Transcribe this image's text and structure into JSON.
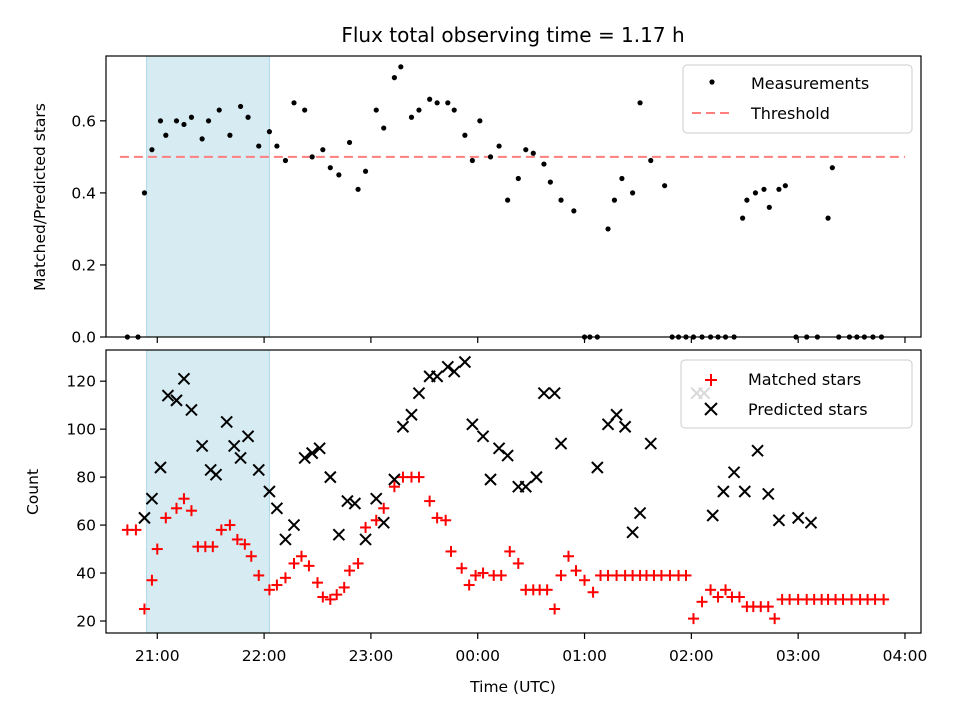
{
  "chart_data": [
    {
      "type": "scatter",
      "title": "Flux total observing time = 1.17 h",
      "xlabel": "",
      "ylabel": "Matched/Predicted stars",
      "x_unit": "hours since 20:00 UTC",
      "xlim": [
        0.52,
        8.15
      ],
      "ylim": [
        0,
        0.78
      ],
      "yticks": [
        0.0,
        0.2,
        0.4,
        0.6
      ],
      "ytick_labels": [
        "0.0",
        "0.2",
        "0.4",
        "0.6"
      ],
      "shaded_span": [
        0.9,
        2.05
      ],
      "shaded_color": "#add8e6",
      "legend_position": "top-right",
      "series": [
        {
          "name": "Measurements",
          "marker": "dot",
          "color": "#000000",
          "x": [
            0.72,
            0.82,
            0.88,
            0.95,
            1.03,
            1.08,
            1.18,
            1.25,
            1.32,
            1.42,
            1.48,
            1.58,
            1.68,
            1.78,
            1.85,
            1.95,
            2.05,
            2.12,
            2.2,
            2.28,
            2.38,
            2.45,
            2.55,
            2.62,
            2.7,
            2.8,
            2.88,
            2.95,
            3.05,
            3.12,
            3.22,
            3.28,
            3.38,
            3.45,
            3.55,
            3.62,
            3.72,
            3.78,
            3.88,
            3.95,
            4.02,
            4.12,
            4.2,
            4.28,
            4.38,
            4.45,
            4.52,
            4.62,
            4.68,
            4.78,
            4.9,
            5.0,
            5.05,
            5.12,
            5.22,
            5.28,
            5.35,
            5.45,
            5.52,
            5.62,
            5.75,
            5.82,
            5.88,
            5.95,
            6.02,
            6.1,
            6.18,
            6.25,
            6.32,
            6.4,
            6.48,
            6.52,
            6.6,
            6.68,
            6.73,
            6.82,
            6.88,
            6.98,
            7.08,
            7.18,
            7.28,
            7.32,
            7.38,
            7.48,
            7.55,
            7.62,
            7.7,
            7.78
          ],
          "y": [
            0.0,
            0.0,
            0.4,
            0.52,
            0.6,
            0.56,
            0.6,
            0.59,
            0.61,
            0.55,
            0.6,
            0.63,
            0.56,
            0.64,
            0.61,
            0.53,
            0.57,
            0.53,
            0.49,
            0.65,
            0.63,
            0.5,
            0.52,
            0.47,
            0.45,
            0.54,
            0.41,
            0.46,
            0.63,
            0.58,
            0.72,
            0.75,
            0.61,
            0.63,
            0.66,
            0.65,
            0.65,
            0.63,
            0.56,
            0.49,
            0.6,
            0.5,
            0.53,
            0.38,
            0.44,
            0.52,
            0.51,
            0.48,
            0.43,
            0.38,
            0.35,
            0.0,
            0.0,
            0.0,
            0.3,
            0.38,
            0.44,
            0.4,
            0.65,
            0.49,
            0.42,
            0.0,
            0.0,
            0.0,
            0.0,
            0.0,
            0.0,
            0.0,
            0.0,
            0.0,
            0.33,
            0.38,
            0.4,
            0.41,
            0.36,
            0.41,
            0.42,
            0.0,
            0.0,
            0.0,
            0.33,
            0.47,
            0.0,
            0.0,
            0.0,
            0.0,
            0.0,
            0.0
          ]
        },
        {
          "name": "Threshold",
          "marker": "dashed-line",
          "color": "#ff7f7f",
          "x": [
            0.65,
            8.0
          ],
          "y": [
            0.5,
            0.5
          ]
        }
      ]
    },
    {
      "type": "scatter",
      "title": "",
      "xlabel": "Time (UTC)",
      "ylabel": "Count",
      "x_unit": "hours since 20:00 UTC",
      "xlim": [
        0.52,
        8.15
      ],
      "ylim": [
        15,
        133
      ],
      "yticks": [
        20,
        40,
        60,
        80,
        100,
        120
      ],
      "xticks": [
        1,
        2,
        3,
        4,
        5,
        6,
        7,
        8
      ],
      "xtick_labels": [
        "21:00",
        "22:00",
        "23:00",
        "00:00",
        "01:00",
        "02:00",
        "03:00",
        "04:00"
      ],
      "shaded_span": [
        0.9,
        2.05
      ],
      "shaded_color": "#add8e6",
      "legend_position": "top-right",
      "series": [
        {
          "name": "Matched stars",
          "marker": "plus",
          "color": "#ff0000",
          "x": [
            0.72,
            0.8,
            0.88,
            0.95,
            1.0,
            1.08,
            1.18,
            1.25,
            1.32,
            1.38,
            1.45,
            1.52,
            1.6,
            1.68,
            1.75,
            1.82,
            1.88,
            1.95,
            2.05,
            2.12,
            2.2,
            2.28,
            2.35,
            2.42,
            2.5,
            2.55,
            2.62,
            2.68,
            2.75,
            2.8,
            2.88,
            2.95,
            3.05,
            3.12,
            3.22,
            3.3,
            3.38,
            3.45,
            3.55,
            3.62,
            3.7,
            3.75,
            3.85,
            3.92,
            3.98,
            4.05,
            4.15,
            4.22,
            4.3,
            4.38,
            4.45,
            4.52,
            4.58,
            4.65,
            4.72,
            4.78,
            4.85,
            4.92,
            5.0,
            5.08,
            5.15,
            5.22,
            5.3,
            5.38,
            5.45,
            5.52,
            5.58,
            5.65,
            5.72,
            5.8,
            5.88,
            5.95,
            6.02,
            6.1,
            6.18,
            6.25,
            6.32,
            6.38,
            6.45,
            6.52,
            6.58,
            6.65,
            6.72,
            6.78,
            6.85,
            6.92,
            7.0,
            7.08,
            7.15,
            7.22,
            7.28,
            7.35,
            7.42,
            7.5,
            7.58,
            7.65,
            7.72,
            7.8
          ],
          "y": [
            58,
            58,
            25,
            37,
            50,
            63,
            67,
            71,
            66,
            51,
            51,
            51,
            58,
            60,
            54,
            52,
            47,
            39,
            33,
            35,
            38,
            44,
            47,
            43,
            36,
            30,
            29,
            31,
            34,
            41,
            44,
            59,
            62,
            67,
            76,
            80,
            80,
            80,
            70,
            63,
            62,
            49,
            42,
            35,
            39,
            40,
            39,
            39,
            49,
            44,
            33,
            33,
            33,
            33,
            25,
            39,
            47,
            41,
            37,
            32,
            39,
            39,
            39,
            39,
            39,
            39,
            39,
            39,
            39,
            39,
            39,
            39,
            21,
            28,
            33,
            30,
            33,
            30,
            30,
            26,
            26,
            26,
            26,
            21,
            29,
            29,
            29,
            29,
            29,
            29,
            29,
            29,
            29,
            29,
            29,
            29,
            29,
            29
          ],
          "count_note": ""
        },
        {
          "name": "Predicted stars",
          "marker": "x",
          "color": "#000000",
          "x": [
            0.88,
            0.95,
            1.03,
            1.1,
            1.18,
            1.25,
            1.32,
            1.42,
            1.5,
            1.55,
            1.65,
            1.72,
            1.78,
            1.85,
            1.95,
            2.05,
            2.12,
            2.2,
            2.28,
            2.38,
            2.45,
            2.52,
            2.62,
            2.7,
            2.78,
            2.85,
            2.95,
            3.05,
            3.12,
            3.22,
            3.3,
            3.38,
            3.45,
            3.55,
            3.62,
            3.72,
            3.78,
            3.88,
            3.95,
            4.05,
            4.12,
            4.2,
            4.28,
            4.38,
            4.45,
            4.55,
            4.62,
            4.72,
            4.78,
            5.12,
            5.22,
            5.3,
            5.38,
            5.45,
            5.52,
            5.62,
            6.05,
            6.12,
            6.2,
            6.3,
            6.4,
            6.5,
            6.62,
            6.72,
            6.82,
            7.0,
            7.12
          ],
          "y": [
            63,
            71,
            84,
            114,
            112,
            121,
            108,
            93,
            83,
            81,
            103,
            93,
            88,
            97,
            83,
            74,
            67,
            54,
            60,
            88,
            90,
            92,
            80,
            56,
            70,
            69,
            54,
            71,
            61,
            79,
            101,
            106,
            115,
            122,
            122,
            126,
            124,
            128,
            102,
            97,
            79,
            92,
            89,
            76,
            76,
            80,
            115,
            115,
            94,
            84,
            102,
            106,
            101,
            57,
            65,
            94,
            115,
            115,
            64,
            74,
            82,
            74,
            91,
            73,
            62,
            63,
            61
          ]
        }
      ]
    }
  ]
}
